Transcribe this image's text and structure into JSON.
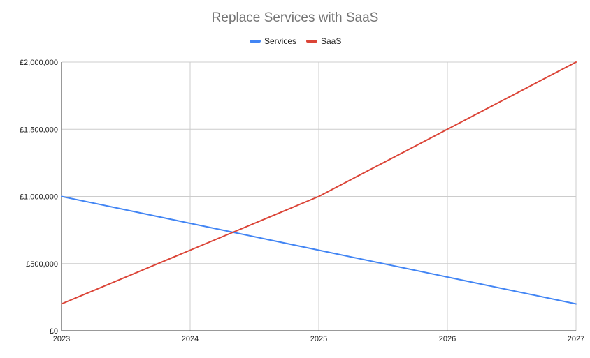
{
  "chart_data": {
    "type": "line",
    "title": "Replace Services with SaaS",
    "xlabel": "",
    "ylabel": "",
    "categories": [
      "2023",
      "2024",
      "2025",
      "2026",
      "2027"
    ],
    "series": [
      {
        "name": "Services",
        "values": [
          1000000,
          800000,
          600000,
          400000,
          200000
        ],
        "color": "#4285f4"
      },
      {
        "name": "SaaS",
        "values": [
          200000,
          600000,
          1000000,
          1500000,
          2000000
        ],
        "color": "#db4437"
      }
    ],
    "ylim": [
      0,
      2000000
    ],
    "y_ticks": [
      0,
      500000,
      1000000,
      1500000,
      2000000
    ],
    "y_tick_labels": [
      "£0",
      "£500,000",
      "£1,000,000",
      "£1,500,000",
      "£2,000,000"
    ],
    "grid": true,
    "legend": "top-center",
    "grid_color": "#cccccc",
    "axis_color": "#333333"
  }
}
